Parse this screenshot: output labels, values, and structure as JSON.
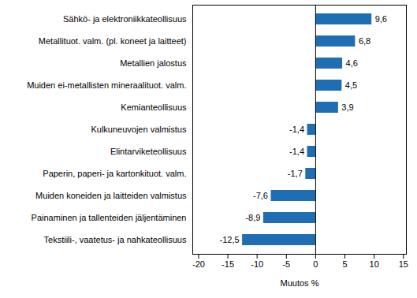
{
  "chart_data": {
    "type": "bar",
    "orientation": "horizontal",
    "categories": [
      "Sähkö- ja elektroniikkateollisuus",
      "Metallituot. valm. (pl. koneet ja laitteet)",
      "Metallien jalostus",
      "Muiden ei-metallisten mineraalituot. valm.",
      "Kemianteollisuus",
      "Kulkuneuvojen valmistus",
      "Elintarviketeollisuus",
      "Paperin, paperi- ja kartonkituot. valm.",
      "Muiden koneiden ja laitteiden valmistus",
      "Painaminen ja tallenteiden jäljentäminen",
      "Tekstiili-, vaatetus- ja nahkateollisuus"
    ],
    "values": [
      9.6,
      6.8,
      4.6,
      4.5,
      3.9,
      -1.4,
      -1.4,
      -1.7,
      -7.6,
      -8.9,
      -12.5
    ],
    "value_labels": [
      "9,6",
      "6,8",
      "4,6",
      "4,5",
      "3,9",
      "-1,4",
      "-1,4",
      "-1,7",
      "-7,6",
      "-8,9",
      "-12,5"
    ],
    "data_labels": true,
    "color": "#1f6eb4",
    "xlabel": "Muutos %",
    "xlim": [
      -21,
      15.5
    ],
    "xticks": [
      -20,
      -15,
      -10,
      -5,
      0,
      5,
      10,
      15
    ],
    "grid": false
  }
}
